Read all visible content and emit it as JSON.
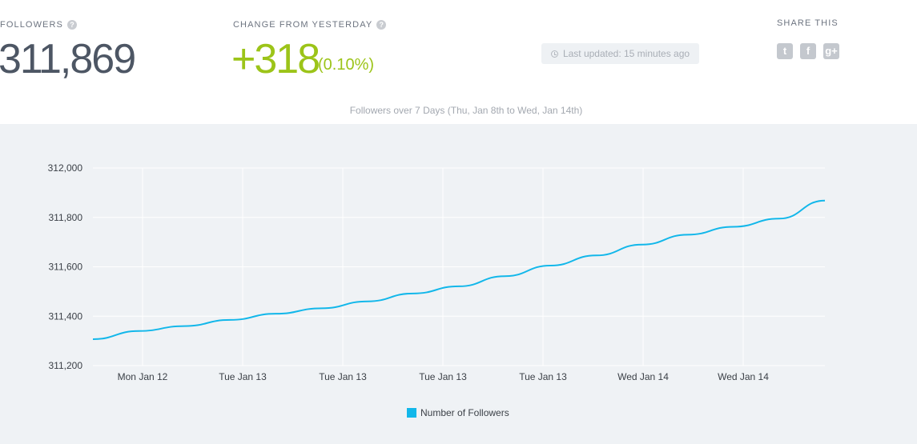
{
  "stats": {
    "followers_label": "FOLLOWERS",
    "followers_value": "311,869",
    "change_label": "CHANGE FROM YESTERDAY",
    "change_value": "+318",
    "change_percent": "(0.10%)",
    "last_updated": "Last updated: 15 minutes ago",
    "help_icon": "?"
  },
  "share": {
    "label": "SHARE THIS",
    "icons": [
      "twitter-icon",
      "facebook-icon",
      "google-plus-icon"
    ],
    "twitter_glyph": "t",
    "facebook_glyph": "f",
    "google_glyph": "g+"
  },
  "colors": {
    "line": "#12b7ea",
    "positive": "#9cc419",
    "chart_bg": "#eff2f5"
  },
  "chart_data": {
    "type": "line",
    "title": "Followers over 7 Days (Thu, Jan 8th to Wed, Jan 14th)",
    "xlabel": "",
    "ylabel": "",
    "ylim": [
      311200,
      312000
    ],
    "yticks": [
      312000,
      311800,
      311600,
      311400,
      311200
    ],
    "ytick_labels": [
      "312,000",
      "311,800",
      "311,600",
      "311,400",
      "311,200"
    ],
    "xtick_labels": [
      "Mon Jan 12",
      "Tue Jan 13",
      "Tue Jan 13",
      "Tue Jan 13",
      "Tue Jan 13",
      "Wed Jan 14",
      "Wed Jan 14"
    ],
    "grid": true,
    "legend_position": "bottom-center",
    "series": [
      {
        "name": "Number of Followers",
        "x_index": [
          0,
          0.5,
          1,
          1.5,
          2,
          2.5,
          3,
          3.5,
          4,
          4.5,
          5,
          5.5,
          6,
          6.5,
          7,
          7.5,
          8
        ],
        "values": [
          311307,
          311340,
          311360,
          311385,
          311410,
          311432,
          311460,
          311492,
          311521,
          311562,
          311605,
          311646,
          311690,
          311730,
          311762,
          311795,
          311868
        ]
      }
    ]
  }
}
